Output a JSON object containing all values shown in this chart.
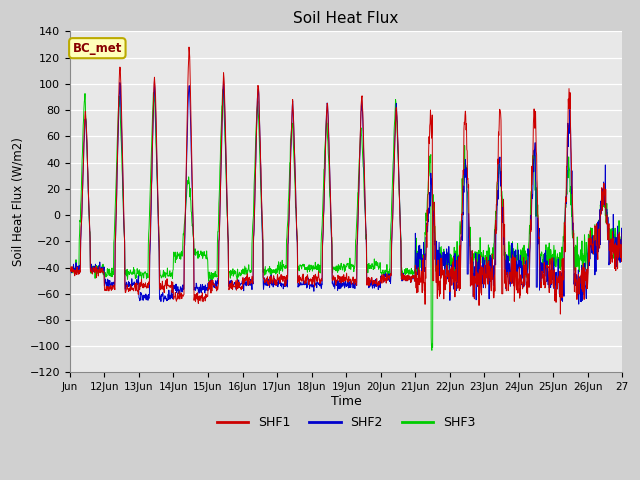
{
  "title": "Soil Heat Flux",
  "ylabel": "Soil Heat Flux (W/m2)",
  "xlabel": "Time",
  "ylim": [
    -120,
    140
  ],
  "yticks": [
    -120,
    -100,
    -80,
    -60,
    -40,
    -20,
    0,
    20,
    40,
    60,
    80,
    100,
    120,
    140
  ],
  "colors": {
    "SHF1": "#cc0000",
    "SHF2": "#0000cc",
    "SHF3": "#00cc00"
  },
  "fig_bg": "#d0d0d0",
  "plot_bg": "#e8e8e8",
  "grid_color": "#ffffff",
  "annotation_text": "BC_met",
  "annotation_fg": "#880000",
  "annotation_bg": "#ffffbb",
  "annotation_border": "#bbaa00",
  "tick_labels": [
    "Jun",
    "12Jun",
    "13Jun",
    "14Jun",
    "15Jun",
    "16Jun",
    "17Jun",
    "18Jun",
    "19Jun",
    "20Jun",
    "21Jun",
    "22Jun",
    "23Jun",
    "24Jun",
    "25Jun",
    "26Jun",
    "27"
  ]
}
